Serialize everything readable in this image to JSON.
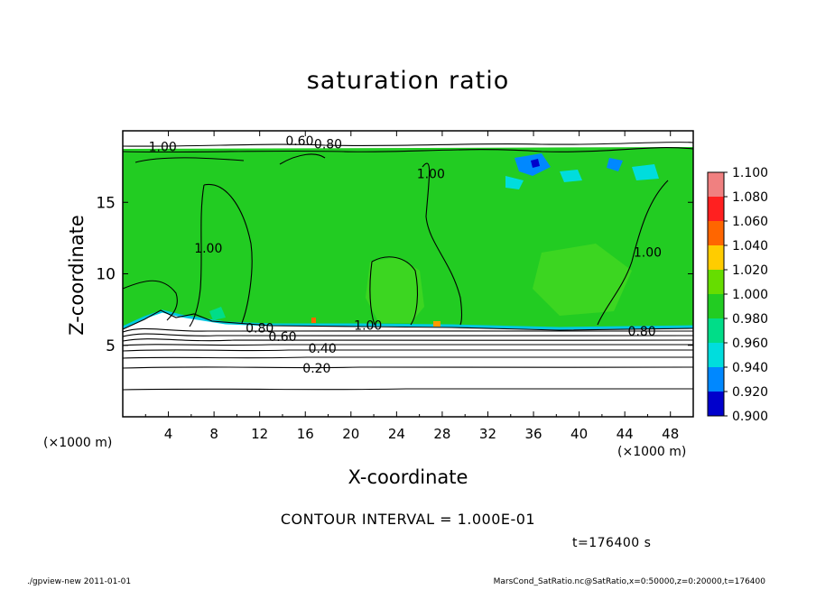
{
  "chart_data": {
    "type": "heatmap",
    "title": "saturation ratio",
    "xlabel": "X-coordinate",
    "ylabel": "Z-coordinate",
    "x_unit": "(×1000 m)",
    "y_unit": "(×1000 m)",
    "xlim": [
      0,
      50
    ],
    "ylim": [
      0,
      20
    ],
    "x_ticks": [
      4,
      8,
      12,
      16,
      20,
      24,
      28,
      32,
      36,
      40,
      44,
      48
    ],
    "y_ticks": [
      5,
      10,
      15
    ],
    "colorbar": {
      "levels": [
        "1.100",
        "1.080",
        "1.060",
        "1.040",
        "1.020",
        "1.000",
        "0.980",
        "0.960",
        "0.940",
        "0.920",
        "0.900"
      ],
      "colors": [
        "#f08080",
        "#ff2020",
        "#ff6600",
        "#ffcc00",
        "#66dd00",
        "#22cc22",
        "#00dd88",
        "#00dddd",
        "#0088ff",
        "#0000cc",
        "#5500aa"
      ]
    },
    "contour_labels": [
      {
        "text": "0.20",
        "x": 17,
        "y": 3.4
      },
      {
        "text": "0.40",
        "x": 17.5,
        "y": 4.8
      },
      {
        "text": "0.60",
        "x": 14,
        "y": 5.6
      },
      {
        "text": "0.80",
        "x": 12,
        "y": 6.2
      },
      {
        "text": "1.00",
        "x": 21.5,
        "y": 6.4
      },
      {
        "text": "0.80",
        "x": 45.5,
        "y": 6.0
      },
      {
        "text": "1.00",
        "x": 7.5,
        "y": 11.8
      },
      {
        "text": "1.00",
        "x": 46,
        "y": 11.5
      },
      {
        "text": "1.00",
        "x": 27,
        "y": 17.0
      },
      {
        "text": "0.60",
        "x": 15.5,
        "y": 19.3
      },
      {
        "text": "0.80",
        "x": 18,
        "y": 19.1
      },
      {
        "text": "1.00",
        "x": 3.5,
        "y": 18.9
      }
    ],
    "grid": false,
    "legend": "right"
  },
  "contour_interval": "CONTOUR INTERVAL = 1.000E-01",
  "time_label": "t=176400 s",
  "footer_left": "./gpview-new   2011-01-01",
  "footer_right": "MarsCond_SatRatio.nc@SatRatio,x=0:50000,z=0:20000,t=176400"
}
